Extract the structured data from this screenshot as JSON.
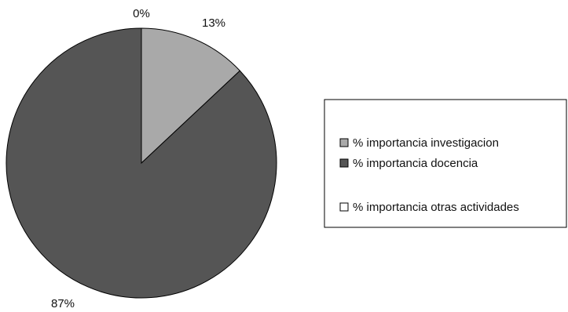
{
  "chart_data": {
    "type": "pie",
    "slices": [
      {
        "label": "% importancia investigacion",
        "value": 13,
        "display": "13%",
        "color": "#a9a9a9"
      },
      {
        "label": "% importancia docencia",
        "value": 87,
        "display": "87%",
        "color": "#555555"
      },
      {
        "label": "% importancia otras actividades",
        "value": 0,
        "display": "0%",
        "color": "#ffffff"
      }
    ],
    "title": "",
    "legend_position": "right"
  }
}
